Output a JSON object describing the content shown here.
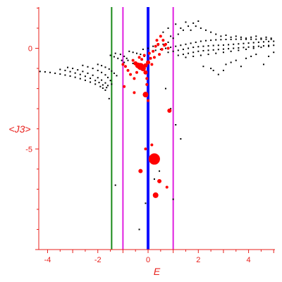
{
  "chart_data": {
    "type": "scatter",
    "title": "",
    "xlabel": "E",
    "ylabel": "<J3>",
    "xlim": [
      -4.35,
      5.05
    ],
    "ylim": [
      -10,
      2.05
    ],
    "grid": false,
    "legend": "none",
    "x_ticks": [
      -4,
      -2,
      0,
      2,
      4
    ],
    "x_tick_labels": [
      "-4",
      "-2",
      "0",
      "2",
      "4"
    ],
    "y_ticks": [
      0,
      -5
    ],
    "y_tick_labels": [
      "0",
      "-5"
    ],
    "colors": {
      "axes": "#e8201c",
      "black_series": "#000000",
      "red_series": "#ff0000",
      "green_line": "#1a8a1a",
      "magenta_line": "#e020e0",
      "blue_line": "#1010ff"
    },
    "vertical_lines": [
      {
        "x": -1.45,
        "color": "#1a8a1a"
      },
      {
        "x": -1.0,
        "color": "#e020e0"
      },
      {
        "x": 0.0,
        "color": "#1010ff"
      },
      {
        "x": 1.0,
        "color": "#e020e0"
      }
    ],
    "series": [
      {
        "color": "#000000",
        "marker": "dot",
        "points": [
          [
            -4.3,
            -1.15
          ],
          [
            -4.1,
            -1.17
          ],
          [
            -3.9,
            -1.2
          ],
          [
            -3.7,
            -1.24
          ],
          [
            -3.5,
            -1.28
          ],
          [
            -3.3,
            -1.33
          ],
          [
            -3.1,
            -1.38
          ],
          [
            -2.9,
            -1.44
          ],
          [
            -2.7,
            -1.51
          ],
          [
            -2.5,
            -1.59
          ],
          [
            -2.3,
            -1.68
          ],
          [
            -2.1,
            -1.78
          ],
          [
            -1.9,
            -1.9
          ],
          [
            -1.8,
            -1.98
          ],
          [
            -1.7,
            -2.08
          ],
          [
            -3.5,
            -1.05
          ],
          [
            -3.3,
            -1.1
          ],
          [
            -3.1,
            -1.16
          ],
          [
            -2.9,
            -1.23
          ],
          [
            -2.7,
            -1.3
          ],
          [
            -2.5,
            -1.39
          ],
          [
            -2.3,
            -1.49
          ],
          [
            -2.1,
            -1.6
          ],
          [
            -1.95,
            -1.7
          ],
          [
            -1.8,
            -1.82
          ],
          [
            -1.65,
            -1.95
          ],
          [
            -3.2,
            -0.95
          ],
          [
            -3.0,
            -1.0
          ],
          [
            -2.8,
            -1.07
          ],
          [
            -2.6,
            -1.15
          ],
          [
            -2.4,
            -1.24
          ],
          [
            -2.2,
            -1.34
          ],
          [
            -2.0,
            -1.46
          ],
          [
            -1.85,
            -1.58
          ],
          [
            -1.7,
            -1.72
          ],
          [
            -1.6,
            -1.85
          ],
          [
            -1.55,
            -2.5
          ],
          [
            -2.6,
            -0.85
          ],
          [
            -2.4,
            -0.92
          ],
          [
            -2.2,
            -1.0
          ],
          [
            -2.0,
            -1.1
          ],
          [
            -1.85,
            -1.2
          ],
          [
            -1.7,
            -1.32
          ],
          [
            -1.6,
            -1.45
          ],
          [
            -1.5,
            -1.6
          ],
          [
            -1.45,
            -1.78
          ],
          [
            -2.0,
            -0.8
          ],
          [
            -1.85,
            -0.86
          ],
          [
            -1.7,
            -0.94
          ],
          [
            -1.55,
            -1.03
          ],
          [
            -1.45,
            -1.13
          ],
          [
            -1.35,
            -1.24
          ],
          [
            -1.25,
            -1.36
          ],
          [
            -1.5,
            -0.35
          ],
          [
            -1.35,
            -0.42
          ],
          [
            -1.2,
            -0.5
          ],
          [
            -1.05,
            -0.6
          ],
          [
            -0.95,
            -0.7
          ],
          [
            -1.3,
            -0.25
          ],
          [
            -1.1,
            -0.3
          ],
          [
            -0.95,
            -0.4
          ],
          [
            -0.85,
            -0.5
          ],
          [
            -0.75,
            -0.15
          ],
          [
            -0.6,
            -0.2
          ],
          [
            -0.45,
            -0.25
          ],
          [
            -0.3,
            -0.3
          ],
          [
            -0.15,
            -0.4
          ],
          [
            -0.8,
            -0.6
          ],
          [
            -0.6,
            -0.75
          ],
          [
            -0.4,
            -0.9
          ],
          [
            -0.2,
            -0.05
          ],
          [
            0.0,
            0.0
          ],
          [
            0.2,
            0.1
          ],
          [
            0.4,
            0.15
          ],
          [
            0.6,
            0.2
          ],
          [
            0.8,
            0.3
          ],
          [
            1.0,
            0.5
          ],
          [
            1.2,
            0.7
          ],
          [
            1.4,
            0.9
          ],
          [
            1.6,
            1.1
          ],
          [
            1.8,
            1.25
          ],
          [
            2.0,
            1.35
          ],
          [
            0.3,
            -0.1
          ],
          [
            0.5,
            -0.05
          ],
          [
            0.7,
            0.0
          ],
          [
            0.9,
            0.05
          ],
          [
            1.1,
            0.1
          ],
          [
            1.3,
            0.15
          ],
          [
            1.5,
            0.2
          ],
          [
            1.7,
            0.25
          ],
          [
            1.9,
            0.3
          ],
          [
            2.1,
            0.35
          ],
          [
            2.3,
            0.38
          ],
          [
            2.5,
            0.4
          ],
          [
            2.7,
            0.42
          ],
          [
            2.9,
            0.43
          ],
          [
            3.1,
            0.44
          ],
          [
            3.3,
            0.44
          ],
          [
            3.5,
            0.45
          ],
          [
            3.7,
            0.45
          ],
          [
            3.9,
            0.45
          ],
          [
            4.1,
            0.45
          ],
          [
            4.3,
            0.45
          ],
          [
            4.5,
            0.45
          ],
          [
            4.7,
            0.45
          ],
          [
            4.9,
            0.45
          ],
          [
            0.8,
            -0.2
          ],
          [
            1.0,
            -0.15
          ],
          [
            1.2,
            -0.1
          ],
          [
            1.4,
            -0.05
          ],
          [
            1.6,
            0.0
          ],
          [
            1.8,
            0.05
          ],
          [
            2.0,
            0.08
          ],
          [
            2.2,
            0.1
          ],
          [
            2.4,
            0.12
          ],
          [
            2.6,
            0.14
          ],
          [
            2.8,
            0.15
          ],
          [
            3.0,
            0.16
          ],
          [
            3.2,
            0.18
          ],
          [
            3.4,
            0.2
          ],
          [
            3.6,
            0.22
          ],
          [
            3.8,
            0.24
          ],
          [
            4.0,
            0.26
          ],
          [
            4.2,
            0.28
          ],
          [
            4.4,
            0.3
          ],
          [
            4.6,
            0.32
          ],
          [
            4.8,
            0.34
          ],
          [
            5.0,
            0.35
          ],
          [
            1.2,
            -0.35
          ],
          [
            1.4,
            -0.3
          ],
          [
            1.6,
            -0.25
          ],
          [
            1.8,
            -0.2
          ],
          [
            2.0,
            -0.15
          ],
          [
            2.2,
            -0.12
          ],
          [
            2.4,
            -0.1
          ],
          [
            2.6,
            -0.08
          ],
          [
            2.8,
            -0.06
          ],
          [
            3.0,
            -0.04
          ],
          [
            3.2,
            -0.02
          ],
          [
            3.4,
            0.0
          ],
          [
            3.6,
            0.02
          ],
          [
            3.8,
            0.04
          ],
          [
            4.0,
            0.06
          ],
          [
            4.2,
            0.08
          ],
          [
            4.4,
            0.1
          ],
          [
            4.6,
            0.12
          ],
          [
            4.8,
            0.14
          ],
          [
            5.0,
            0.15
          ],
          [
            1.5,
            -0.45
          ],
          [
            1.8,
            -0.4
          ],
          [
            2.1,
            -0.35
          ],
          [
            2.4,
            -0.3
          ],
          [
            2.7,
            -0.25
          ],
          [
            3.0,
            -0.2
          ],
          [
            3.3,
            -0.15
          ],
          [
            3.6,
            -0.1
          ],
          [
            3.9,
            -0.05
          ],
          [
            4.2,
            0.0
          ],
          [
            4.5,
            0.05
          ],
          [
            4.8,
            0.1
          ],
          [
            0.6,
            0.8
          ],
          [
            0.8,
            1.0
          ],
          [
            0.9,
            0.6
          ],
          [
            1.1,
            1.2
          ],
          [
            1.3,
            1.0
          ],
          [
            1.5,
            1.3
          ],
          [
            1.7,
            0.9
          ],
          [
            1.9,
            1.1
          ],
          [
            2.1,
            1.0
          ],
          [
            2.3,
            0.9
          ],
          [
            2.5,
            0.8
          ],
          [
            2.7,
            0.7
          ],
          [
            2.9,
            0.6
          ],
          [
            3.1,
            0.65
          ],
          [
            3.3,
            0.55
          ],
          [
            3.5,
            0.6
          ],
          [
            3.7,
            0.55
          ],
          [
            3.9,
            0.5
          ],
          [
            4.1,
            0.55
          ],
          [
            4.3,
            0.6
          ],
          [
            4.5,
            0.5
          ],
          [
            4.7,
            0.55
          ],
          [
            4.9,
            0.5
          ],
          [
            2.2,
            -0.9
          ],
          [
            2.5,
            -1.0
          ],
          [
            2.6,
            -1.1
          ],
          [
            2.8,
            -1.3
          ],
          [
            3.0,
            -1.1
          ],
          [
            3.1,
            -0.8
          ],
          [
            3.3,
            -0.7
          ],
          [
            3.5,
            -0.6
          ],
          [
            3.7,
            -0.9
          ],
          [
            3.9,
            -0.5
          ],
          [
            4.1,
            -0.4
          ],
          [
            4.3,
            -0.3
          ],
          [
            4.6,
            -0.8
          ],
          [
            4.8,
            -0.4
          ],
          [
            5.0,
            -0.2
          ],
          [
            0.7,
            -2.0
          ],
          [
            0.9,
            -3.0
          ],
          [
            1.1,
            -3.8
          ],
          [
            1.3,
            -4.5
          ],
          [
            1.0,
            -7.5
          ],
          [
            -0.35,
            -9.0
          ],
          [
            -1.3,
            -6.8
          ],
          [
            -0.1,
            -7.7
          ],
          [
            0.25,
            -6.5
          ],
          [
            0.45,
            -6.1
          ]
        ]
      },
      {
        "color": "#ff0000",
        "marker": "circle",
        "points": [
          [
            -0.6,
            -0.6,
            2
          ],
          [
            -0.5,
            -0.75,
            3
          ],
          [
            -0.4,
            -0.85,
            4
          ],
          [
            -0.3,
            -0.9,
            5
          ],
          [
            -0.2,
            -1.0,
            4
          ],
          [
            -0.1,
            -0.85,
            3
          ],
          [
            0.0,
            -0.7,
            3
          ],
          [
            0.1,
            -0.5,
            2
          ],
          [
            -0.25,
            -0.55,
            2
          ],
          [
            -0.35,
            -0.45,
            2
          ],
          [
            -0.15,
            -0.35,
            2
          ],
          [
            0.05,
            -0.25,
            2
          ],
          [
            0.2,
            -0.15,
            2
          ],
          [
            0.3,
            0.1,
            2
          ],
          [
            0.4,
            0.2,
            2
          ],
          [
            0.6,
            0.4,
            2
          ],
          [
            0.7,
            0.2,
            2
          ],
          [
            0.55,
            -0.05,
            2
          ],
          [
            0.45,
            -0.3,
            2
          ],
          [
            0.25,
            -0.45,
            2
          ],
          [
            0.15,
            -0.8,
            2
          ],
          [
            -0.8,
            -1.1,
            2
          ],
          [
            -0.7,
            -1.3,
            2
          ],
          [
            -0.55,
            -1.5,
            2
          ],
          [
            -0.45,
            -1.2,
            2
          ],
          [
            -0.9,
            -0.9,
            2
          ],
          [
            -1.0,
            -0.8,
            2
          ],
          [
            -0.1,
            -1.2,
            3
          ],
          [
            -0.05,
            -1.5,
            2
          ],
          [
            -0.05,
            -1.8,
            2
          ],
          [
            -0.1,
            -2.3,
            4
          ],
          [
            -0.55,
            -2.2,
            2
          ],
          [
            -0.95,
            -1.9,
            2
          ],
          [
            0.0,
            -2.6,
            2
          ],
          [
            0.85,
            -3.1,
            3
          ],
          [
            0.25,
            -5.5,
            8
          ],
          [
            -0.3,
            -6.1,
            3
          ],
          [
            0.45,
            -6.6,
            3
          ],
          [
            0.3,
            -7.3,
            4
          ],
          [
            0.75,
            -6.9,
            2
          ],
          [
            -0.1,
            -5.0,
            2
          ],
          [
            0.15,
            -4.8,
            2
          ],
          [
            0.35,
            0.4,
            2
          ],
          [
            0.5,
            0.6,
            2
          ],
          [
            0.65,
            0.15,
            2
          ],
          [
            0.8,
            0.0,
            2
          ]
        ]
      }
    ]
  }
}
